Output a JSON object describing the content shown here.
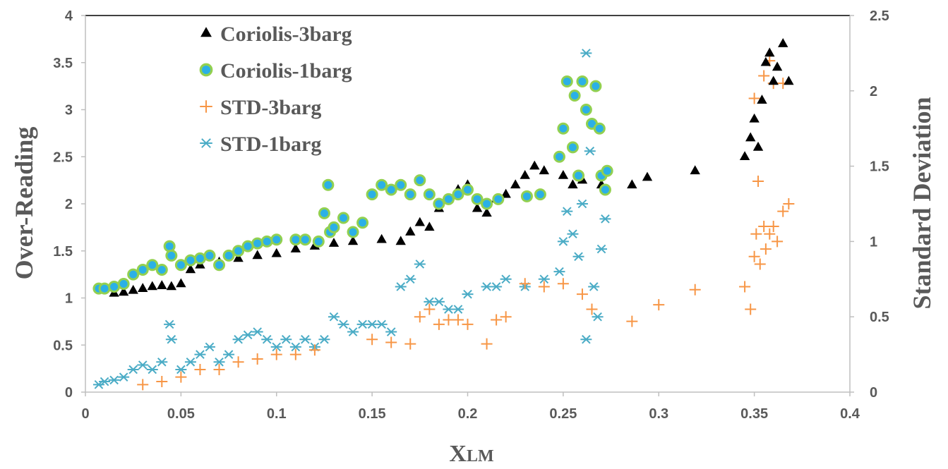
{
  "chart_data": {
    "type": "scatter",
    "xlabel": "X",
    "xlabel_sub": "LM",
    "ylabel": "Over-Reading",
    "y2label": "Standard Deviation",
    "xlim": [
      0,
      0.4
    ],
    "ylim": [
      0,
      4
    ],
    "y2lim": [
      0,
      2.5
    ],
    "xticks": [
      "0",
      "0.05",
      "0.1",
      "0.15",
      "0.2",
      "0.25",
      "0.3",
      "0.35",
      "0.4"
    ],
    "yticks": [
      "0",
      "0.5",
      "1",
      "1.5",
      "2",
      "2.5",
      "3",
      "3.5",
      "4"
    ],
    "y2ticks": [
      "0",
      "0.5",
      "1",
      "1.5",
      "2",
      "2.5"
    ],
    "legend_position": "top-left",
    "colors": {
      "coriolis_3barg": "#000000",
      "coriolis_1barg_fill": "#2bb0e6",
      "coriolis_1barg_edge": "#92d050",
      "std_3barg": "#f79646",
      "std_1barg": "#4bacc6",
      "axis": "#bfbfbf",
      "text": "#595959"
    },
    "series": [
      {
        "name": "Coriolis-3barg",
        "axis": "left",
        "marker": "triangle",
        "points": [
          [
            0.015,
            1.05
          ],
          [
            0.02,
            1.06
          ],
          [
            0.025,
            1.08
          ],
          [
            0.03,
            1.1
          ],
          [
            0.035,
            1.12
          ],
          [
            0.04,
            1.13
          ],
          [
            0.045,
            1.12
          ],
          [
            0.05,
            1.15
          ],
          [
            0.055,
            1.3
          ],
          [
            0.06,
            1.35
          ],
          [
            0.07,
            1.38
          ],
          [
            0.08,
            1.42
          ],
          [
            0.09,
            1.45
          ],
          [
            0.1,
            1.47
          ],
          [
            0.11,
            1.52
          ],
          [
            0.12,
            1.55
          ],
          [
            0.13,
            1.58
          ],
          [
            0.14,
            1.6
          ],
          [
            0.155,
            1.62
          ],
          [
            0.165,
            1.6
          ],
          [
            0.17,
            1.7
          ],
          [
            0.175,
            1.8
          ],
          [
            0.18,
            1.75
          ],
          [
            0.185,
            1.95
          ],
          [
            0.19,
            2.05
          ],
          [
            0.195,
            2.15
          ],
          [
            0.2,
            2.2
          ],
          [
            0.205,
            1.95
          ],
          [
            0.21,
            1.9
          ],
          [
            0.215,
            2.05
          ],
          [
            0.22,
            2.1
          ],
          [
            0.225,
            2.2
          ],
          [
            0.23,
            2.3
          ],
          [
            0.235,
            2.4
          ],
          [
            0.24,
            2.35
          ],
          [
            0.25,
            2.3
          ],
          [
            0.255,
            2.2
          ],
          [
            0.26,
            2.25
          ],
          [
            0.27,
            2.2
          ],
          [
            0.286,
            2.2
          ],
          [
            0.294,
            2.28
          ],
          [
            0.319,
            2.35
          ],
          [
            0.345,
            2.5
          ],
          [
            0.348,
            2.7
          ],
          [
            0.35,
            2.9
          ],
          [
            0.352,
            2.6
          ],
          [
            0.354,
            3.1
          ],
          [
            0.356,
            3.5
          ],
          [
            0.358,
            3.6
          ],
          [
            0.36,
            3.3
          ],
          [
            0.362,
            3.45
          ],
          [
            0.365,
            3.7
          ],
          [
            0.368,
            3.3
          ]
        ]
      },
      {
        "name": "Coriolis-1barg",
        "axis": "left",
        "marker": "circle",
        "points": [
          [
            0.007,
            1.1
          ],
          [
            0.01,
            1.1
          ],
          [
            0.015,
            1.12
          ],
          [
            0.02,
            1.15
          ],
          [
            0.025,
            1.25
          ],
          [
            0.03,
            1.3
          ],
          [
            0.035,
            1.35
          ],
          [
            0.04,
            1.3
          ],
          [
            0.044,
            1.55
          ],
          [
            0.045,
            1.45
          ],
          [
            0.05,
            1.35
          ],
          [
            0.055,
            1.4
          ],
          [
            0.06,
            1.42
          ],
          [
            0.065,
            1.45
          ],
          [
            0.07,
            1.35
          ],
          [
            0.075,
            1.45
          ],
          [
            0.08,
            1.5
          ],
          [
            0.085,
            1.55
          ],
          [
            0.09,
            1.58
          ],
          [
            0.095,
            1.6
          ],
          [
            0.1,
            1.62
          ],
          [
            0.11,
            1.62
          ],
          [
            0.115,
            1.62
          ],
          [
            0.122,
            1.6
          ],
          [
            0.125,
            1.9
          ],
          [
            0.127,
            2.2
          ],
          [
            0.128,
            1.7
          ],
          [
            0.13,
            1.75
          ],
          [
            0.135,
            1.85
          ],
          [
            0.14,
            1.7
          ],
          [
            0.145,
            1.8
          ],
          [
            0.15,
            2.1
          ],
          [
            0.155,
            2.2
          ],
          [
            0.16,
            2.15
          ],
          [
            0.165,
            2.2
          ],
          [
            0.17,
            2.1
          ],
          [
            0.175,
            2.25
          ],
          [
            0.18,
            2.1
          ],
          [
            0.185,
            2.0
          ],
          [
            0.19,
            2.05
          ],
          [
            0.195,
            2.1
          ],
          [
            0.2,
            2.15
          ],
          [
            0.205,
            2.05
          ],
          [
            0.21,
            2.0
          ],
          [
            0.216,
            2.05
          ],
          [
            0.231,
            2.08
          ],
          [
            0.238,
            2.1
          ],
          [
            0.248,
            2.5
          ],
          [
            0.25,
            2.8
          ],
          [
            0.252,
            3.3
          ],
          [
            0.255,
            2.6
          ],
          [
            0.256,
            3.15
          ],
          [
            0.258,
            2.3
          ],
          [
            0.26,
            3.3
          ],
          [
            0.262,
            3.0
          ],
          [
            0.265,
            2.85
          ],
          [
            0.267,
            3.25
          ],
          [
            0.269,
            2.8
          ],
          [
            0.27,
            2.3
          ],
          [
            0.272,
            2.15
          ],
          [
            0.273,
            2.35
          ]
        ]
      },
      {
        "name": "STD-3barg",
        "axis": "right",
        "marker": "plus",
        "points": [
          [
            0.03,
            0.05
          ],
          [
            0.04,
            0.07
          ],
          [
            0.05,
            0.1
          ],
          [
            0.06,
            0.15
          ],
          [
            0.07,
            0.15
          ],
          [
            0.08,
            0.2
          ],
          [
            0.09,
            0.22
          ],
          [
            0.1,
            0.25
          ],
          [
            0.11,
            0.25
          ],
          [
            0.12,
            0.28
          ],
          [
            0.15,
            0.35
          ],
          [
            0.16,
            0.33
          ],
          [
            0.17,
            0.32
          ],
          [
            0.175,
            0.5
          ],
          [
            0.18,
            0.55
          ],
          [
            0.185,
            0.45
          ],
          [
            0.19,
            0.48
          ],
          [
            0.195,
            0.48
          ],
          [
            0.2,
            0.45
          ],
          [
            0.21,
            0.32
          ],
          [
            0.215,
            0.48
          ],
          [
            0.22,
            0.5
          ],
          [
            0.23,
            0.72
          ],
          [
            0.24,
            0.7
          ],
          [
            0.25,
            0.72
          ],
          [
            0.26,
            0.65
          ],
          [
            0.265,
            0.55
          ],
          [
            0.286,
            0.47
          ],
          [
            0.3,
            0.58
          ],
          [
            0.319,
            0.68
          ],
          [
            0.345,
            0.7
          ],
          [
            0.348,
            0.55
          ],
          [
            0.35,
            0.9
          ],
          [
            0.351,
            1.05
          ],
          [
            0.352,
            1.4
          ],
          [
            0.353,
            0.85
          ],
          [
            0.355,
            1.1
          ],
          [
            0.356,
            0.95
          ],
          [
            0.358,
            1.05
          ],
          [
            0.36,
            1.1
          ],
          [
            0.362,
            1.0
          ],
          [
            0.365,
            1.2
          ],
          [
            0.368,
            1.25
          ],
          [
            0.35,
            1.95
          ],
          [
            0.355,
            2.1
          ],
          [
            0.358,
            2.2
          ],
          [
            0.36,
            2.05
          ],
          [
            0.365,
            2.05
          ]
        ]
      },
      {
        "name": "STD-1barg",
        "axis": "right",
        "marker": "asterisk",
        "points": [
          [
            0.007,
            0.05
          ],
          [
            0.01,
            0.07
          ],
          [
            0.015,
            0.08
          ],
          [
            0.02,
            0.1
          ],
          [
            0.025,
            0.15
          ],
          [
            0.03,
            0.18
          ],
          [
            0.035,
            0.15
          ],
          [
            0.04,
            0.2
          ],
          [
            0.044,
            0.45
          ],
          [
            0.045,
            0.35
          ],
          [
            0.05,
            0.15
          ],
          [
            0.055,
            0.2
          ],
          [
            0.06,
            0.25
          ],
          [
            0.065,
            0.3
          ],
          [
            0.07,
            0.2
          ],
          [
            0.075,
            0.25
          ],
          [
            0.08,
            0.35
          ],
          [
            0.085,
            0.38
          ],
          [
            0.09,
            0.4
          ],
          [
            0.095,
            0.35
          ],
          [
            0.1,
            0.3
          ],
          [
            0.105,
            0.35
          ],
          [
            0.11,
            0.3
          ],
          [
            0.115,
            0.35
          ],
          [
            0.12,
            0.3
          ],
          [
            0.125,
            0.35
          ],
          [
            0.13,
            0.5
          ],
          [
            0.135,
            0.45
          ],
          [
            0.14,
            0.4
          ],
          [
            0.145,
            0.45
          ],
          [
            0.15,
            0.45
          ],
          [
            0.155,
            0.45
          ],
          [
            0.16,
            0.4
          ],
          [
            0.165,
            0.7
          ],
          [
            0.17,
            0.75
          ],
          [
            0.175,
            0.85
          ],
          [
            0.18,
            0.6
          ],
          [
            0.185,
            0.6
          ],
          [
            0.19,
            0.55
          ],
          [
            0.195,
            0.55
          ],
          [
            0.2,
            0.65
          ],
          [
            0.21,
            0.7
          ],
          [
            0.215,
            0.7
          ],
          [
            0.22,
            0.75
          ],
          [
            0.23,
            0.7
          ],
          [
            0.24,
            0.75
          ],
          [
            0.248,
            0.8
          ],
          [
            0.25,
            1.0
          ],
          [
            0.252,
            1.2
          ],
          [
            0.255,
            1.05
          ],
          [
            0.258,
            0.9
          ],
          [
            0.26,
            1.25
          ],
          [
            0.262,
            2.25
          ],
          [
            0.264,
            1.6
          ],
          [
            0.266,
            0.7
          ],
          [
            0.268,
            0.5
          ],
          [
            0.27,
            0.95
          ],
          [
            0.272,
            1.15
          ],
          [
            0.262,
            0.35
          ]
        ]
      }
    ]
  }
}
